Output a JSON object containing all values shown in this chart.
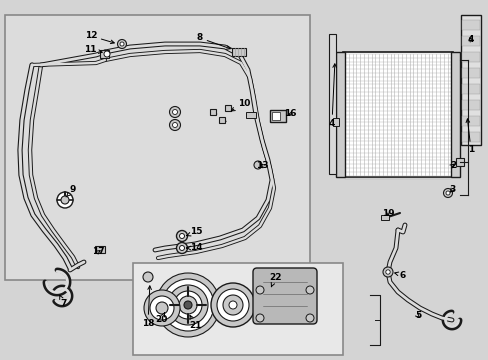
{
  "bg_color": "#d4d4d4",
  "box1_color": "#dcdcdc",
  "box2_color": "#e8e8e8",
  "line_color": "#1a1a1a",
  "white": "#ffffff",
  "gray_light": "#c8c8c8",
  "gray_mid": "#a0a0a0",
  "figsize": [
    4.89,
    3.6
  ],
  "dpi": 100
}
